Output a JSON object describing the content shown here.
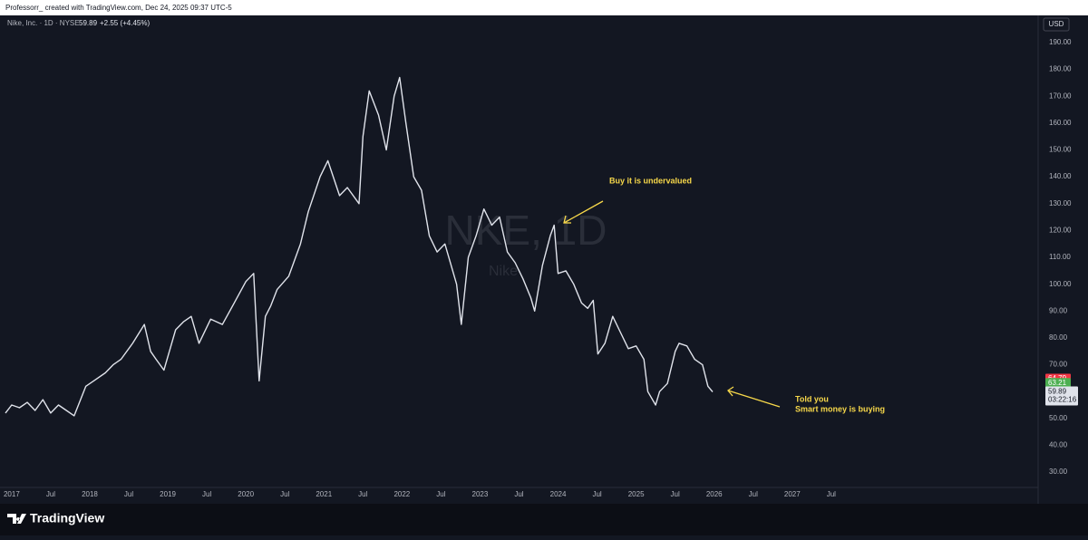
{
  "page": {
    "credit": "Professorr_ created with TradingView.com, Dec 24, 2025 09:37 UTC-5",
    "brand": "TradingView",
    "currency": "USD"
  },
  "chart_data": {
    "type": "line",
    "title": "Nike, Inc. · 1D · NYSE",
    "last_price": "59.89",
    "change": "+2.55 (+4.45%)",
    "watermark": [
      "NKE, 1D",
      "Nike"
    ],
    "annotations": [
      [
        "Buy it is undervalued"
      ],
      [
        "Told you",
        "Smart money is buying"
      ]
    ],
    "countdown": "03:22:16",
    "color": "#e0e3eb",
    "x": [
      2016.92,
      2017.0,
      2017.1,
      2017.2,
      2017.3,
      2017.4,
      2017.5,
      2017.6,
      2017.7,
      2017.8,
      2017.95,
      2018.05,
      2018.2,
      2018.3,
      2018.4,
      2018.55,
      2018.7,
      2018.78,
      2018.85,
      2018.95,
      2019.1,
      2019.2,
      2019.3,
      2019.4,
      2019.55,
      2019.7,
      2019.85,
      2020.0,
      2020.1,
      2020.17,
      2020.25,
      2020.32,
      2020.4,
      2020.55,
      2020.7,
      2020.8,
      2020.95,
      2021.05,
      2021.2,
      2021.3,
      2021.45,
      2021.5,
      2021.58,
      2021.7,
      2021.8,
      2021.9,
      2021.97,
      2022.05,
      2022.15,
      2022.25,
      2022.35,
      2022.45,
      2022.55,
      2022.7,
      2022.76,
      2022.85,
      2022.95,
      2023.05,
      2023.15,
      2023.25,
      2023.35,
      2023.45,
      2023.55,
      2023.65,
      2023.7,
      2023.8,
      2023.9,
      2023.95,
      2024.0,
      2024.1,
      2024.2,
      2024.3,
      2024.38,
      2024.45,
      2024.51,
      2024.6,
      2024.7,
      2024.8,
      2024.9,
      2025.0,
      2025.1,
      2025.15,
      2025.25,
      2025.3,
      2025.4,
      2025.5,
      2025.55,
      2025.65,
      2025.75,
      2025.85,
      2025.92,
      2025.98
    ],
    "values": [
      52,
      55,
      54,
      56,
      53,
      57,
      52,
      55,
      53,
      51,
      62,
      64,
      67,
      70,
      72,
      78,
      85,
      75,
      72,
      68,
      83,
      86,
      88,
      78,
      87,
      85,
      93,
      101,
      104,
      64,
      88,
      92,
      98,
      103,
      115,
      127,
      140,
      146,
      133,
      136,
      130,
      155,
      172,
      163,
      150,
      170,
      177,
      160,
      140,
      135,
      118,
      112,
      115,
      100,
      85,
      110,
      118,
      128,
      122,
      125,
      112,
      108,
      102,
      95,
      90,
      107,
      118,
      122,
      104,
      105,
      100,
      93,
      91,
      94,
      74,
      78,
      88,
      82,
      76,
      77,
      72,
      60,
      55,
      60,
      63,
      75,
      78,
      77,
      72,
      70,
      62,
      59.89
    ],
    "xlim": [
      2016.92,
      2030.15
    ],
    "ylim": [
      24.3,
      193.7
    ],
    "xticks": [
      {
        "value": 2017,
        "label": "2017"
      },
      {
        "value": 2017.5,
        "label": "Jul"
      },
      {
        "value": 2018,
        "label": "2018"
      },
      {
        "value": 2018.5,
        "label": "Jul"
      },
      {
        "value": 2019,
        "label": "2019"
      },
      {
        "value": 2019.5,
        "label": "Jul"
      },
      {
        "value": 2020,
        "label": "2020"
      },
      {
        "value": 2020.5,
        "label": "Jul"
      },
      {
        "value": 2021,
        "label": "2021"
      },
      {
        "value": 2021.5,
        "label": "Jul"
      },
      {
        "value": 2022,
        "label": "2022"
      },
      {
        "value": 2022.5,
        "label": "Jul"
      },
      {
        "value": 2023,
        "label": "2023"
      },
      {
        "value": 2023.5,
        "label": "Jul"
      },
      {
        "value": 2024,
        "label": "2024"
      },
      {
        "value": 2024.5,
        "label": "Jul"
      },
      {
        "value": 2025,
        "label": "2025"
      },
      {
        "value": 2025.5,
        "label": "Jul"
      },
      {
        "value": 2026,
        "label": "2026"
      },
      {
        "value": 2026.5,
        "label": "Jul"
      },
      {
        "value": 2027,
        "label": "2027"
      },
      {
        "value": 2027.5,
        "label": "Jul"
      }
    ],
    "yticks": [
      {
        "value": 30,
        "label": "30.00"
      },
      {
        "value": 40,
        "label": "40.00"
      },
      {
        "value": 50,
        "label": "50.00"
      },
      {
        "value": 60,
        "label": "60.00"
      },
      {
        "value": 70,
        "label": "70.00"
      },
      {
        "value": 80,
        "label": "80.00"
      },
      {
        "value": 90,
        "label": "90.00"
      },
      {
        "value": 100,
        "label": "100.00"
      },
      {
        "value": 110,
        "label": "110.00"
      },
      {
        "value": 120,
        "label": "120.00"
      },
      {
        "value": 130,
        "label": "130.00"
      },
      {
        "value": 140,
        "label": "140.00"
      },
      {
        "value": 150,
        "label": "150.00"
      },
      {
        "value": 160,
        "label": "160.00"
      },
      {
        "value": 170,
        "label": "170.00"
      },
      {
        "value": 180,
        "label": "180.00"
      },
      {
        "value": 190,
        "label": "190.00"
      }
    ],
    "price_labels": [
      {
        "value": 64.79,
        "color": "#f23645"
      },
      {
        "value": 63.21,
        "color": "#4caf50"
      }
    ],
    "grid": false
  }
}
